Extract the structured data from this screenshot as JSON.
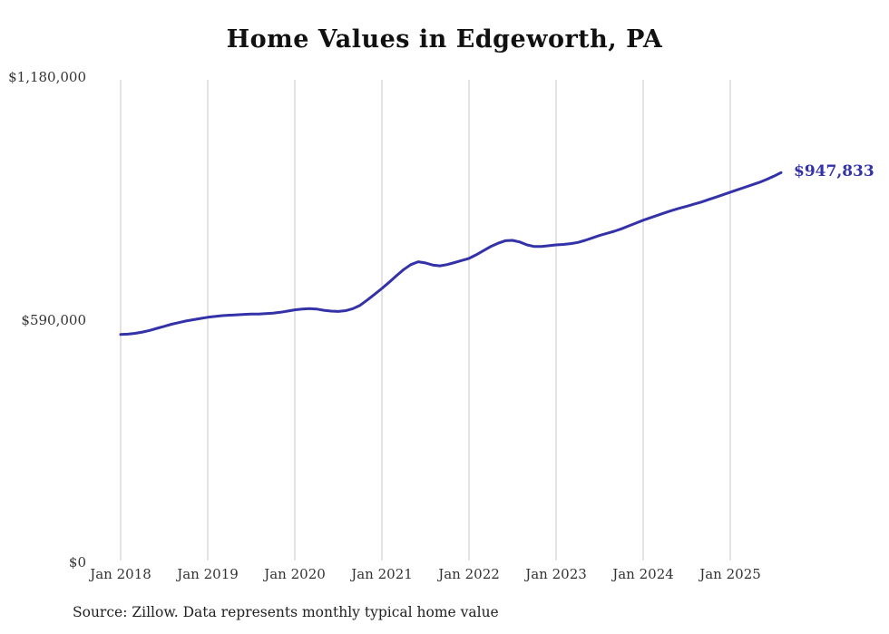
{
  "page": {
    "background_color": "#ffffff"
  },
  "chart_data": {
    "type": "line",
    "title": "Home Values in Edgeworth, PA",
    "source_note": "Source: Zillow. Data represents monthly typical home value",
    "end_label": "$947,833",
    "legend": "none",
    "grid": "vertical-only",
    "grid_color": "#c9c9c9",
    "line_color": "#3432a8",
    "ylim": [
      0,
      1180000
    ],
    "y_ticks": [
      {
        "label": "$0",
        "value": 0
      },
      {
        "label": "$590,000",
        "value": 590000
      },
      {
        "label": "$1,180,000",
        "value": 1180000
      }
    ],
    "x_ticks": [
      {
        "label": "Jan 2018",
        "month_index": 0
      },
      {
        "label": "Jan 2019",
        "month_index": 12
      },
      {
        "label": "Jan 2020",
        "month_index": 24
      },
      {
        "label": "Jan 2021",
        "month_index": 36
      },
      {
        "label": "Jan 2022",
        "month_index": 48
      },
      {
        "label": "Jan 2023",
        "month_index": 60
      },
      {
        "label": "Jan 2024",
        "month_index": 72
      },
      {
        "label": "Jan 2025",
        "month_index": 84
      }
    ],
    "series": [
      {
        "name": "Monthly typical home value",
        "start": "Jan 2018",
        "frequency": "monthly",
        "values": [
          554000,
          555000,
          557000,
          560000,
          564000,
          569000,
          574000,
          579000,
          583000,
          587000,
          590000,
          593000,
          596000,
          598000,
          600000,
          601000,
          602000,
          603000,
          604000,
          604000,
          605000,
          606000,
          608000,
          611000,
          614000,
          616000,
          617000,
          616000,
          613000,
          611000,
          610000,
          612000,
          617000,
          625000,
          638000,
          652000,
          666000,
          681000,
          697000,
          712000,
          724000,
          731000,
          728000,
          723000,
          721000,
          724000,
          729000,
          734000,
          739000,
          748000,
          758000,
          768000,
          776000,
          782000,
          783000,
          779000,
          772000,
          768000,
          768000,
          770000,
          772000,
          773000,
          775000,
          778000,
          783000,
          789000,
          795000,
          800000,
          805000,
          811000,
          818000,
          825000,
          832000,
          838000,
          844000,
          850000,
          856000,
          861000,
          866000,
          871000,
          876000,
          882000,
          888000,
          894000,
          900000,
          906000,
          912000,
          918000,
          924000,
          931000,
          939000,
          947833
        ]
      }
    ]
  }
}
